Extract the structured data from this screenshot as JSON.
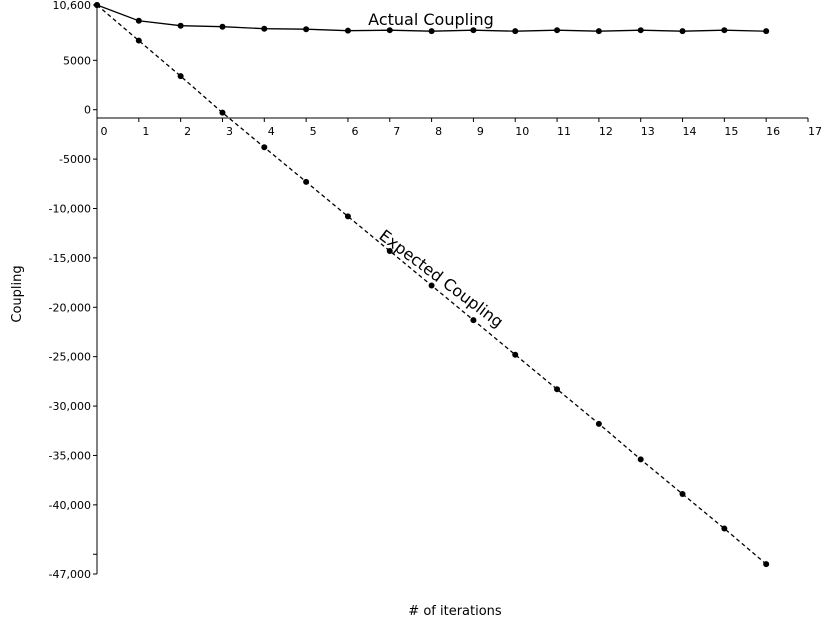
{
  "chart_data": {
    "type": "line",
    "xlabel": "# of iterations",
    "ylabel": "Coupling",
    "xlim": [
      0,
      17
    ],
    "ylim": [
      -47000,
      10600
    ],
    "x_ticks": [
      "0",
      "1",
      "2",
      "3",
      "4",
      "5",
      "6",
      "7",
      "8",
      "9",
      "10",
      "11",
      "12",
      "13",
      "14",
      "15",
      "16",
      "17"
    ],
    "y_ticks": [
      {
        "value": 10600,
        "label": "10,600"
      },
      {
        "value": 5000,
        "label": "5000"
      },
      {
        "value": 0,
        "label": "0"
      },
      {
        "value": -5000,
        "label": "-5000"
      },
      {
        "value": -10000,
        "label": "-10,000"
      },
      {
        "value": -15000,
        "label": "-15,000"
      },
      {
        "value": -20000,
        "label": "-20,000"
      },
      {
        "value": -25000,
        "label": "-25,000"
      },
      {
        "value": -30000,
        "label": "-30,000"
      },
      {
        "value": -35000,
        "label": "-35,000"
      },
      {
        "value": -40000,
        "label": "-40,000"
      },
      {
        "value": -45000,
        "label": ""
      },
      {
        "value": -47000,
        "label": "-47,000"
      }
    ],
    "grid": false,
    "legend": "none",
    "series": [
      {
        "name": "Actual Coupling",
        "line_style": "solid",
        "x": [
          0,
          1,
          2,
          3,
          4,
          5,
          6,
          7,
          8,
          9,
          10,
          11,
          12,
          13,
          14,
          15,
          16
        ],
        "y": [
          10600,
          9000,
          8500,
          8400,
          8200,
          8150,
          8000,
          8050,
          7950,
          8050,
          7950,
          8050,
          7950,
          8050,
          7950,
          8050,
          7950
        ]
      },
      {
        "name": "Expected Coupling",
        "line_style": "dashed",
        "x": [
          0,
          1,
          2,
          3,
          4,
          5,
          6,
          7,
          8,
          9,
          10,
          11,
          12,
          13,
          14,
          15,
          16
        ],
        "y": [
          10600,
          7000,
          3400,
          -300,
          -3800,
          -7300,
          -10800,
          -14300,
          -17800,
          -21300,
          -24800,
          -28300,
          -31800,
          -35400,
          -38900,
          -42400,
          -46000
        ]
      }
    ]
  }
}
